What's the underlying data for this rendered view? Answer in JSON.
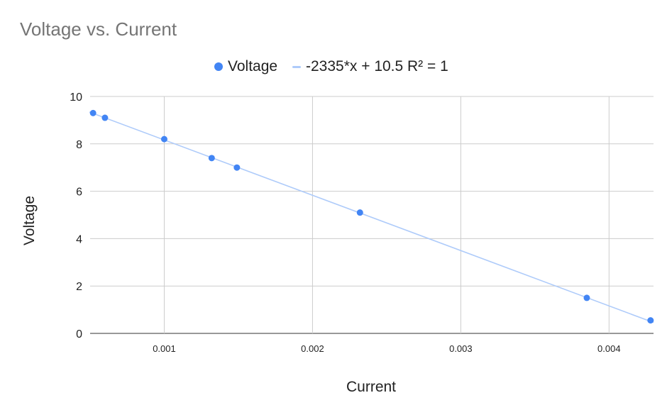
{
  "chart_data": {
    "type": "scatter",
    "title": "Voltage vs. Current",
    "xlabel": "Current",
    "ylabel": "Voltage",
    "xlim": [
      0.0005,
      0.0043
    ],
    "ylim": [
      0,
      10
    ],
    "x_ticks": [
      0.001,
      0.002,
      0.003,
      0.004
    ],
    "x_tick_labels": [
      "0.001",
      "0.002",
      "0.003",
      "0.004"
    ],
    "y_ticks": [
      0,
      2,
      4,
      6,
      8,
      10
    ],
    "y_tick_labels": [
      "0",
      "2",
      "4",
      "6",
      "8",
      "10"
    ],
    "grid": true,
    "legend_position": "top",
    "series": [
      {
        "name": "Voltage",
        "color": "#4285f4",
        "x": [
          0.00052,
          0.0006,
          0.001,
          0.00132,
          0.00149,
          0.00232,
          0.00385,
          0.00428
        ],
        "y": [
          9.3,
          9.1,
          8.2,
          7.4,
          7.0,
          5.1,
          1.5,
          0.55
        ]
      }
    ],
    "trendline": {
      "label": "-2335*x + 10.5 R² = 1",
      "slope": -2335,
      "intercept": 10.5,
      "color": "#aecbfa"
    }
  }
}
